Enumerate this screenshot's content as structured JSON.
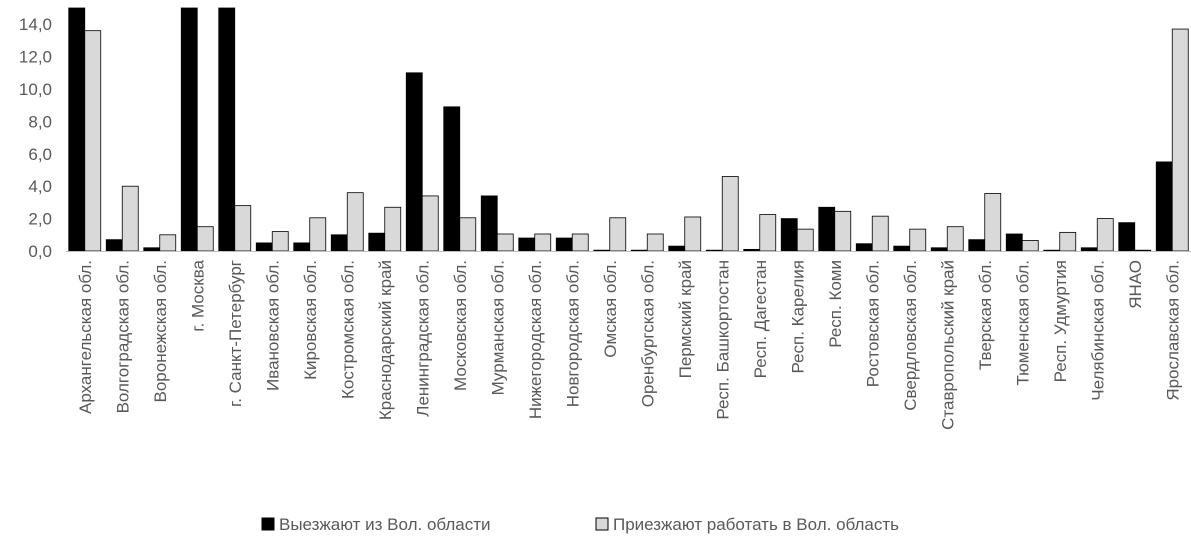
{
  "chart_data": {
    "type": "bar",
    "ylim": [
      0,
      15
    ],
    "yticks": [
      0,
      2,
      4,
      6,
      8,
      10,
      12,
      14
    ],
    "ytick_labels": [
      "0,0",
      "2,0",
      "4,0",
      "6,0",
      "8,0",
      "10,0",
      "12,0",
      "14,0"
    ],
    "grid": false,
    "legend_position": "bottom",
    "categories": [
      "Архангельская обл.",
      "Волгоградская обл.",
      "Воронежская обл.",
      "г. Москва",
      "г. Санкт-Петербург",
      "Ивановская обл.",
      "Кировская обл.",
      "Костромская обл.",
      "Краснодарский край",
      "Ленинградская обл.",
      "Московская обл.",
      "Мурманская обл.",
      "Нижегородская обл.",
      "Новгородская обл.",
      "Омская обл.",
      "Оренбургская обл.",
      "Пермский край",
      "Респ. Башкортостан",
      "Респ. Дагестан",
      "Респ. Карелия",
      "Респ. Коми",
      "Ростовская обл.",
      "Свердловская обл.",
      "Ставропольский край",
      "Тверская обл.",
      "Тюменская обл.",
      "Респ. Удмуртия",
      "Челябинская обл.",
      "ЯНАО",
      "Ярославская обл."
    ],
    "series": [
      {
        "name": "Выезжают из Вол. области",
        "color": "#000000",
        "values": [
          15.0,
          0.7,
          0.2,
          15.0,
          15.0,
          0.5,
          0.5,
          1.0,
          1.1,
          11.0,
          8.9,
          3.4,
          0.8,
          0.8,
          0.05,
          0.05,
          0.3,
          0.05,
          0.1,
          2.0,
          2.7,
          0.45,
          0.3,
          0.2,
          0.7,
          1.05,
          0.05,
          0.2,
          1.75,
          5.5
        ]
      },
      {
        "name": "Приезжают работать в Вол. область",
        "color": "#d9d9d9",
        "values": [
          13.6,
          4.0,
          1.0,
          1.5,
          2.8,
          1.2,
          2.05,
          3.6,
          2.7,
          3.4,
          2.05,
          1.05,
          1.05,
          1.05,
          2.05,
          1.05,
          2.1,
          4.6,
          2.25,
          1.35,
          2.45,
          2.15,
          1.35,
          1.5,
          3.55,
          0.65,
          1.15,
          2.0,
          0.05,
          13.7
        ]
      }
    ]
  },
  "colors": {
    "axis": "#bfbfbf",
    "text": "#595959",
    "bar_outline": "#000000"
  }
}
